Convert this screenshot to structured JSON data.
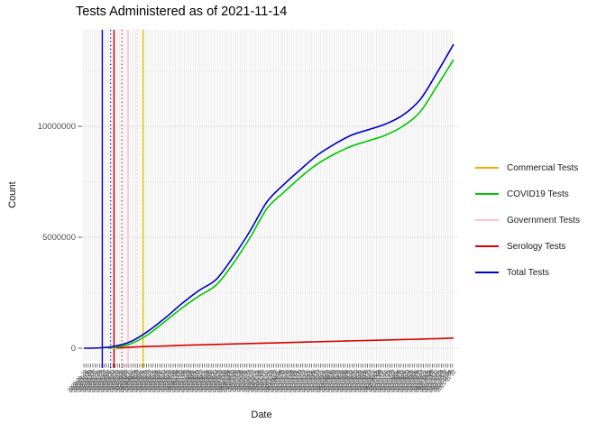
{
  "title": "Tests Administered as of 2021-11-14",
  "y_axis": {
    "label": "Count",
    "ticks": [
      {
        "text": "0",
        "value_millions": 0
      },
      {
        "text": "5000000",
        "value_millions": 5
      },
      {
        "text": "10000000",
        "value_millions": 10
      }
    ]
  },
  "x_axis": {
    "label": "Date",
    "tick_start": "2020-01-22",
    "tick_end": "2021-11-14",
    "tick_step_days": 4
  },
  "legend": {
    "items": [
      {
        "label": "Commercial Tests",
        "color": "#FFA500"
      },
      {
        "label": "COVID19 Tests",
        "color": "#00C800"
      },
      {
        "label": "Government Tests",
        "color": "#FFC0CB"
      },
      {
        "label": "Serology Tests",
        "color": "#D80000"
      },
      {
        "label": "Total Tests",
        "color": "#0000C8"
      }
    ]
  },
  "chart_data": {
    "type": "line",
    "title": "Tests Administered as of 2021-11-14",
    "xlabel": "Date",
    "ylabel": "Count",
    "x_range": [
      "2020-01-22",
      "2021-11-14"
    ],
    "ylim_millions": [
      0,
      14.3
    ],
    "grid": {
      "vertical_every_tick": true,
      "y_major_millions": [
        0,
        5,
        10
      ],
      "y_minor_millions": [
        2.5,
        7.5,
        12.5
      ]
    },
    "unit": "tests (millions)",
    "series": [
      {
        "name": "Government Tests",
        "color": "#FFC0CB",
        "dates": [
          "2020-03-02",
          "2020-04-17"
        ],
        "values_millions": [
          0.005,
          0.005
        ]
      },
      {
        "name": "Commercial Tests",
        "color": "#FFA500",
        "dates": [
          "2020-03-08",
          "2020-04-06"
        ],
        "values_millions": [
          0.02,
          0.02
        ]
      },
      {
        "name": "Serology Tests",
        "color": "#D80000",
        "dates": [
          "2020-03-20",
          "2020-04-15",
          "2020-05-15",
          "2020-06-15",
          "2020-07-15",
          "2020-08-15",
          "2020-09-15",
          "2020-10-15",
          "2020-11-15",
          "2020-12-15",
          "2021-01-15",
          "2021-02-15",
          "2021-03-15",
          "2021-04-15",
          "2021-05-15",
          "2021-06-15",
          "2021-07-15",
          "2021-08-15",
          "2021-09-15",
          "2021-10-15",
          "2021-11-14"
        ],
        "values_millions": [
          0.01,
          0.05,
          0.08,
          0.1,
          0.13,
          0.15,
          0.17,
          0.19,
          0.21,
          0.23,
          0.25,
          0.27,
          0.29,
          0.31,
          0.33,
          0.35,
          0.37,
          0.39,
          0.41,
          0.43,
          0.46
        ]
      },
      {
        "name": "COVID19 Tests",
        "color": "#00C800",
        "dates": [
          "2020-03-05",
          "2020-03-15",
          "2020-04-15",
          "2020-05-15",
          "2020-06-15",
          "2020-07-15",
          "2020-08-15",
          "2020-09-15",
          "2020-10-15",
          "2020-11-15",
          "2020-12-15",
          "2021-01-15",
          "2021-02-15",
          "2021-03-15",
          "2021-04-15",
          "2021-05-15",
          "2021-06-15",
          "2021-07-15",
          "2021-08-15",
          "2021-09-15",
          "2021-10-15",
          "2021-11-14"
        ],
        "values_millions": [
          0.01,
          0.04,
          0.2,
          0.6,
          1.2,
          1.8,
          2.35,
          2.85,
          3.8,
          5.0,
          6.3,
          7.05,
          7.75,
          8.3,
          8.75,
          9.1,
          9.35,
          9.6,
          10.0,
          10.65,
          11.8,
          13.0
        ]
      },
      {
        "name": "Total Tests",
        "color": "#0000C8",
        "dates": [
          "2020-01-22",
          "2020-02-15",
          "2020-03-15",
          "2020-04-15",
          "2020-05-15",
          "2020-06-15",
          "2020-07-15",
          "2020-08-15",
          "2020-09-15",
          "2020-10-15",
          "2020-11-15",
          "2020-12-15",
          "2021-01-15",
          "2021-02-15",
          "2021-03-15",
          "2021-04-15",
          "2021-05-15",
          "2021-06-15",
          "2021-07-15",
          "2021-08-15",
          "2021-09-15",
          "2021-10-15",
          "2021-11-14"
        ],
        "values_millions": [
          0.0,
          0.01,
          0.08,
          0.3,
          0.75,
          1.35,
          2.0,
          2.6,
          3.1,
          4.1,
          5.3,
          6.6,
          7.4,
          8.1,
          8.7,
          9.2,
          9.6,
          9.85,
          10.1,
          10.5,
          11.2,
          12.4,
          13.7
        ]
      }
    ],
    "vlines": [
      {
        "color": "#0000C8",
        "style": "solid",
        "date": "2020-02-24"
      },
      {
        "color": "#0000C8",
        "style": "dotted",
        "date": "2020-03-10"
      },
      {
        "color": "#D80000",
        "style": "solid",
        "date": "2020-03-16"
      },
      {
        "color": "#D80000",
        "style": "dotted",
        "date": "2020-03-30"
      },
      {
        "color": "#FFC0CB",
        "style": "solid",
        "date": "2020-04-10"
      },
      {
        "color": "#FFC0CB",
        "style": "dotted",
        "date": "2020-04-25"
      },
      {
        "color": "#F0C800",
        "style": "solid",
        "date": "2020-05-07"
      }
    ]
  }
}
